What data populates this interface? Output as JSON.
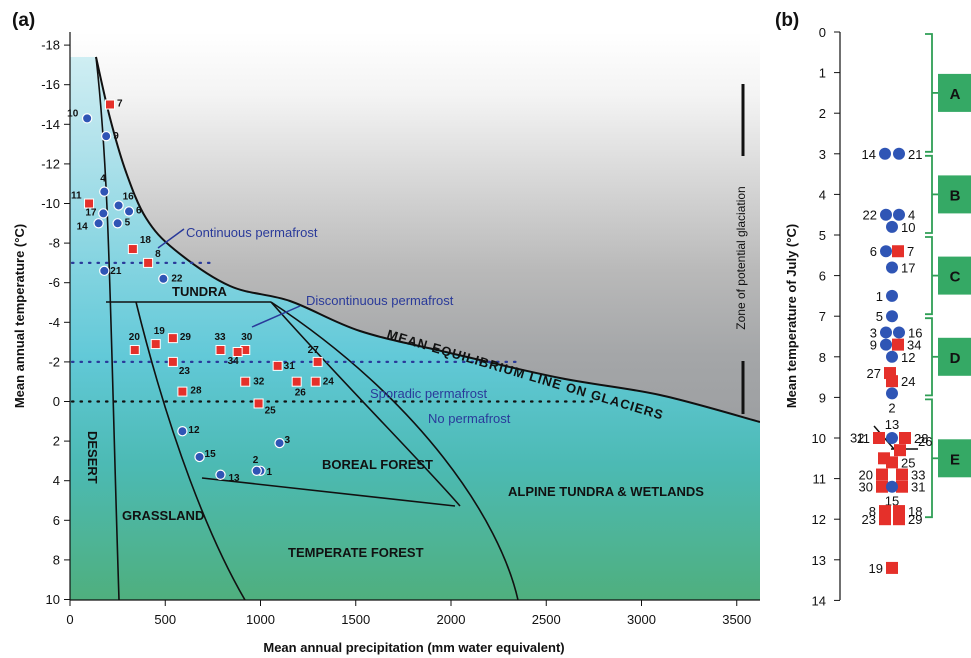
{
  "panel_a_label": "(a)",
  "panel_b_label": "(b)",
  "chart_data": [
    {
      "type": "scatter",
      "panel": "(a)",
      "xlabel": "Mean annual precipitation (mm water equivalent)",
      "ylabel": "Mean annual temperature (°C)",
      "xlim": [
        0,
        3700
      ],
      "ylim": [
        10,
        -19
      ],
      "y_inverted": true,
      "xticks": [
        "0",
        "500",
        "1000",
        "1500",
        "2000",
        "2500",
        "3000",
        "3500"
      ],
      "yticks": [
        "-18",
        "-16",
        "-14",
        "-12",
        "-10",
        "-8",
        "-6",
        "-4",
        "-2",
        "0",
        "2",
        "4",
        "6",
        "8",
        "10"
      ],
      "grid": false,
      "points": [
        {
          "id": "1",
          "x": 1000,
          "y": 3.5,
          "marker": "circle"
        },
        {
          "id": "2",
          "x": 980,
          "y": 3.5,
          "marker": "circle"
        },
        {
          "id": "3",
          "x": 1100,
          "y": 2.1,
          "marker": "circle"
        },
        {
          "id": "4",
          "x": 180,
          "y": -10.6,
          "marker": "circle"
        },
        {
          "id": "5",
          "x": 250,
          "y": -9,
          "marker": "circle"
        },
        {
          "id": "6",
          "x": 310,
          "y": -9.6,
          "marker": "circle"
        },
        {
          "id": "7",
          "x": 210,
          "y": -15,
          "marker": "square"
        },
        {
          "id": "8",
          "x": 410,
          "y": -7,
          "marker": "square"
        },
        {
          "id": "9",
          "x": 190,
          "y": -13.4,
          "marker": "circle"
        },
        {
          "id": "10",
          "x": 90,
          "y": -14.3,
          "marker": "circle"
        },
        {
          "id": "11",
          "x": 100,
          "y": -10,
          "marker": "square"
        },
        {
          "id": "12",
          "x": 590,
          "y": 1.5,
          "marker": "circle"
        },
        {
          "id": "13",
          "x": 790,
          "y": 3.7,
          "marker": "circle"
        },
        {
          "id": "14",
          "x": 150,
          "y": -9,
          "marker": "circle"
        },
        {
          "id": "15",
          "x": 680,
          "y": 2.8,
          "marker": "circle"
        },
        {
          "id": "16",
          "x": 255,
          "y": -9.9,
          "marker": "circle"
        },
        {
          "id": "17",
          "x": 175,
          "y": -9.5,
          "marker": "circle"
        },
        {
          "id": "18",
          "x": 330,
          "y": -7.7,
          "marker": "square"
        },
        {
          "id": "19",
          "x": 450,
          "y": -2.9,
          "marker": "square"
        },
        {
          "id": "20",
          "x": 340,
          "y": -2.6,
          "marker": "square"
        },
        {
          "id": "21",
          "x": 180,
          "y": -6.6,
          "marker": "circle"
        },
        {
          "id": "22",
          "x": 490,
          "y": -6.2,
          "marker": "circle"
        },
        {
          "id": "23",
          "x": 540,
          "y": -2,
          "marker": "square"
        },
        {
          "id": "24",
          "x": 1290,
          "y": -1,
          "marker": "square"
        },
        {
          "id": "25",
          "x": 990,
          "y": 0.1,
          "marker": "square"
        },
        {
          "id": "26",
          "x": 1190,
          "y": -1,
          "marker": "square"
        },
        {
          "id": "27",
          "x": 1300,
          "y": -2,
          "marker": "square"
        },
        {
          "id": "28",
          "x": 590,
          "y": -0.5,
          "marker": "square"
        },
        {
          "id": "29",
          "x": 540,
          "y": -3.2,
          "marker": "square"
        },
        {
          "id": "30",
          "x": 920,
          "y": -2.6,
          "marker": "square"
        },
        {
          "id": "31",
          "x": 1090,
          "y": -1.8,
          "marker": "square"
        },
        {
          "id": "32",
          "x": 920,
          "y": -1,
          "marker": "square"
        },
        {
          "id": "33",
          "x": 790,
          "y": -2.6,
          "marker": "square"
        },
        {
          "id": "34",
          "x": 880,
          "y": -2.5,
          "marker": "square"
        }
      ],
      "region_labels": [
        "TUNDRA",
        "BOREAL FOREST",
        "GRASSLAND",
        "DESERT",
        "TEMPERATE FOREST",
        "ALPINE TUNDRA & WETLANDS"
      ],
      "annotations": [
        "Continuous permafrost",
        "Discontinuous permafrost",
        "Sporadic permafrost",
        "No permafrost",
        "MEAN EQUILIBRIUM LINE ON GLACIERS",
        "Zone of potential glaciation"
      ]
    },
    {
      "type": "scatter",
      "panel": "(b)",
      "ylabel": "Mean temperature of July (°C)",
      "ylim": [
        0,
        14
      ],
      "yticks": [
        "0",
        "1",
        "2",
        "3",
        "4",
        "5",
        "6",
        "7",
        "8",
        "9",
        "10",
        "11",
        "12",
        "13",
        "14"
      ],
      "groups": [
        {
          "name": "A",
          "range": [
            0,
            3
          ]
        },
        {
          "name": "B",
          "range": [
            3,
            5
          ]
        },
        {
          "name": "C",
          "range": [
            5,
            7
          ]
        },
        {
          "name": "D",
          "range": [
            7,
            9
          ]
        },
        {
          "name": "E",
          "range": [
            9,
            12
          ]
        }
      ],
      "points": [
        {
          "id": "14",
          "y": 3,
          "marker": "circle"
        },
        {
          "id": "21",
          "y": 3,
          "marker": "circle"
        },
        {
          "id": "22",
          "y": 4.5,
          "marker": "circle"
        },
        {
          "id": "4",
          "y": 4.5,
          "marker": "circle"
        },
        {
          "id": "10",
          "y": 4.8,
          "marker": "circle"
        },
        {
          "id": "6",
          "y": 5.4,
          "marker": "circle"
        },
        {
          "id": "7",
          "y": 5.4,
          "marker": "square"
        },
        {
          "id": "17",
          "y": 5.8,
          "marker": "circle"
        },
        {
          "id": "1",
          "y": 6.5,
          "marker": "circle"
        },
        {
          "id": "5",
          "y": 7,
          "marker": "circle"
        },
        {
          "id": "3",
          "y": 7.4,
          "marker": "circle"
        },
        {
          "id": "16",
          "y": 7.4,
          "marker": "circle"
        },
        {
          "id": "9",
          "y": 7.7,
          "marker": "circle"
        },
        {
          "id": "34",
          "y": 7.7,
          "marker": "square"
        },
        {
          "id": "12",
          "y": 8,
          "marker": "circle"
        },
        {
          "id": "27",
          "y": 8.4,
          "marker": "square"
        },
        {
          "id": "24",
          "y": 8.6,
          "marker": "square"
        },
        {
          "id": "2",
          "y": 8.9,
          "marker": "circle"
        },
        {
          "id": "13",
          "y": 10,
          "marker": "circle"
        },
        {
          "id": "11",
          "y": 10,
          "marker": "square"
        },
        {
          "id": "28",
          "y": 10,
          "marker": "square"
        },
        {
          "id": "26",
          "y": 10.3,
          "marker": "square"
        },
        {
          "id": "32",
          "y": 10.5,
          "marker": "square"
        },
        {
          "id": "25",
          "y": 10.6,
          "marker": "square"
        },
        {
          "id": "20",
          "y": 10.9,
          "marker": "square"
        },
        {
          "id": "33",
          "y": 10.9,
          "marker": "square"
        },
        {
          "id": "30",
          "y": 11.2,
          "marker": "square"
        },
        {
          "id": "31",
          "y": 11.2,
          "marker": "square"
        },
        {
          "id": "15",
          "y": 11.2,
          "marker": "circle"
        },
        {
          "id": "8",
          "y": 11.8,
          "marker": "square"
        },
        {
          "id": "18",
          "y": 11.8,
          "marker": "square"
        },
        {
          "id": "23",
          "y": 12,
          "marker": "square"
        },
        {
          "id": "29",
          "y": 12,
          "marker": "square"
        },
        {
          "id": "19",
          "y": 13.2,
          "marker": "square"
        }
      ]
    }
  ]
}
